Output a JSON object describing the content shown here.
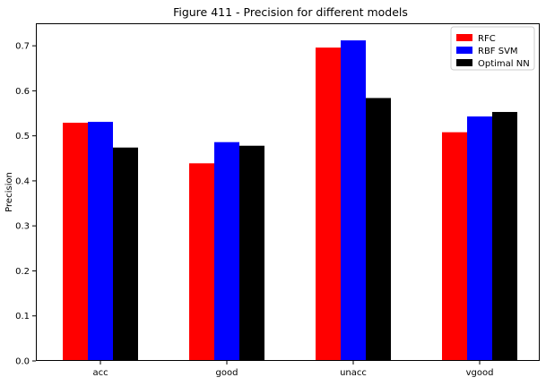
{
  "chart_data": {
    "type": "bar",
    "title": "Figure 411 - Precision for different models",
    "xlabel": "",
    "ylabel": "Precision",
    "categories": [
      "acc",
      "good",
      "unacc",
      "vgood"
    ],
    "series": [
      {
        "name": "RFC",
        "color": "#ff0000",
        "values": [
          0.529,
          0.439,
          0.696,
          0.508
        ]
      },
      {
        "name": "RBF SVM",
        "color": "#0000ff",
        "values": [
          0.531,
          0.486,
          0.712,
          0.543
        ]
      },
      {
        "name": "Optimal NN",
        "color": "#000000",
        "values": [
          0.474,
          0.478,
          0.584,
          0.553
        ]
      }
    ],
    "ylim": [
      0,
      0.75
    ],
    "yticks": [
      0.0,
      0.1,
      0.2,
      0.3,
      0.4,
      0.5,
      0.6,
      0.7
    ],
    "ytick_labels": [
      "0.0",
      "0.1",
      "0.2",
      "0.3",
      "0.4",
      "0.5",
      "0.6",
      "0.7"
    ],
    "grid": false,
    "legend": "top-right"
  }
}
